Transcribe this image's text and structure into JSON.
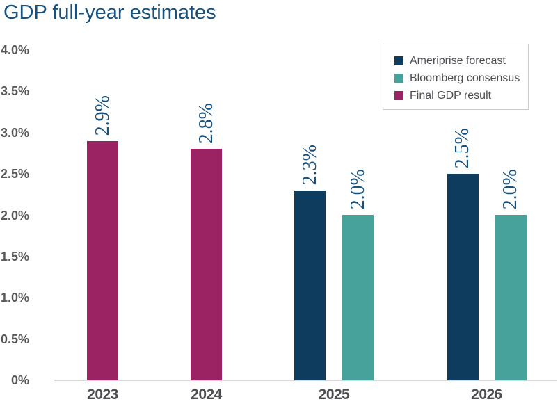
{
  "title": "GDP full-year estimates",
  "colors": {
    "title_text": "#17517E",
    "bar_label_text": "#17517E",
    "axis_tick_text": "#58585B",
    "category_text": "#4D4D52",
    "axis_line": "#D9D9D9",
    "legend_border": "#CBCBCB",
    "legend_text": "#4D4E53"
  },
  "chart_data": {
    "type": "bar",
    "title": "GDP full-year estimates",
    "xlabel": "",
    "ylabel": "",
    "unit": "%",
    "ylim": [
      0,
      4.0
    ],
    "ytick_labels": [
      "4.0%",
      "3.5%",
      "3.0%",
      "2.5%",
      "2.0%",
      "1.5%",
      "1.0%",
      "0.5%",
      "0%"
    ],
    "grid": "off",
    "legend_position": "top-right",
    "categories": [
      "2023",
      "2024",
      "2025",
      "2026"
    ],
    "series": [
      {
        "name": "Ameriprise forecast",
        "color": "#0D3C5E",
        "values": [
          null,
          null,
          2.3,
          2.5
        ],
        "labels": [
          null,
          null,
          "2.3%",
          "2.5%"
        ]
      },
      {
        "name": "Bloomberg consensus",
        "color": "#47A29B",
        "values": [
          null,
          null,
          2.0,
          2.0
        ],
        "labels": [
          null,
          null,
          "2.0%",
          "2.0%"
        ]
      },
      {
        "name": "Final GDP result",
        "color": "#9B2364",
        "values": [
          2.9,
          2.8,
          null,
          null
        ],
        "labels": [
          "2.9%",
          "2.8%",
          null,
          null
        ]
      }
    ]
  }
}
